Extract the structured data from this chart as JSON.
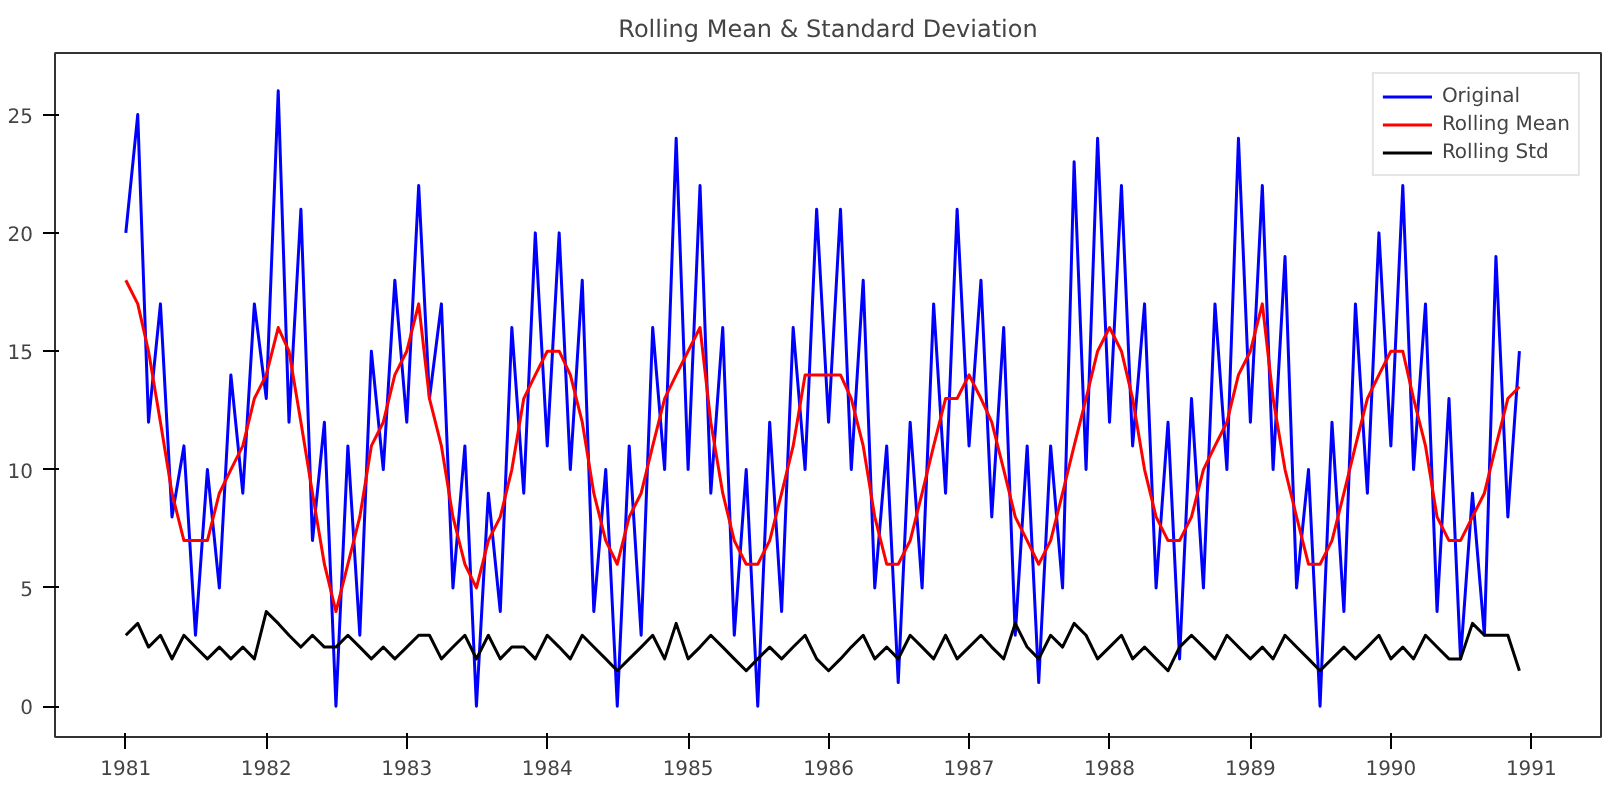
{
  "chart_data": {
    "type": "line",
    "title": "Rolling Mean & Standard Deviation",
    "x": [
      "1981-01",
      "1981-02",
      "1981-03",
      "1981-04",
      "1981-05",
      "1981-06",
      "1981-07",
      "1981-08",
      "1981-09",
      "1981-10",
      "1981-11",
      "1981-12",
      "1982-01",
      "1982-02",
      "1982-03",
      "1982-04",
      "1982-05",
      "1982-06",
      "1982-07",
      "1982-08",
      "1982-09",
      "1982-10",
      "1982-11",
      "1982-12",
      "1983-01",
      "1983-02",
      "1983-03",
      "1983-04",
      "1983-05",
      "1983-06",
      "1983-07",
      "1983-08",
      "1983-09",
      "1983-10",
      "1983-11",
      "1983-12",
      "1984-01",
      "1984-02",
      "1984-03",
      "1984-04",
      "1984-05",
      "1984-06",
      "1984-07",
      "1984-08",
      "1984-09",
      "1984-10",
      "1984-11",
      "1984-12",
      "1985-01",
      "1985-02",
      "1985-03",
      "1985-04",
      "1985-05",
      "1985-06",
      "1985-07",
      "1985-08",
      "1985-09",
      "1985-10",
      "1985-11",
      "1985-12",
      "1986-01",
      "1986-02",
      "1986-03",
      "1986-04",
      "1986-05",
      "1986-06",
      "1986-07",
      "1986-08",
      "1986-09",
      "1986-10",
      "1986-11",
      "1986-12",
      "1987-01",
      "1987-02",
      "1987-03",
      "1987-04",
      "1987-05",
      "1987-06",
      "1987-07",
      "1987-08",
      "1987-09",
      "1987-10",
      "1987-11",
      "1987-12",
      "1988-01",
      "1988-02",
      "1988-03",
      "1988-04",
      "1988-05",
      "1988-06",
      "1988-07",
      "1988-08",
      "1988-09",
      "1988-10",
      "1988-11",
      "1988-12",
      "1989-01",
      "1989-02",
      "1989-03",
      "1989-04",
      "1989-05",
      "1989-06",
      "1989-07",
      "1989-08",
      "1989-09",
      "1989-10",
      "1989-11",
      "1989-12",
      "1990-01",
      "1990-02",
      "1990-03",
      "1990-04",
      "1990-05",
      "1990-06",
      "1990-07",
      "1990-08",
      "1990-09",
      "1990-10",
      "1990-11",
      "1990-12"
    ],
    "series": [
      {
        "name": "Original",
        "color": "#0000ff",
        "values": [
          20,
          25,
          12,
          17,
          8,
          11,
          3,
          10,
          5,
          14,
          9,
          17,
          13,
          26,
          12,
          21,
          7,
          12,
          0,
          11,
          3,
          15,
          10,
          18,
          12,
          22,
          13,
          17,
          5,
          11,
          0,
          9,
          4,
          16,
          9,
          20,
          11,
          20,
          10,
          18,
          4,
          10,
          0,
          11,
          3,
          16,
          10,
          24,
          10,
          22,
          9,
          16,
          3,
          10,
          0,
          12,
          4,
          16,
          10,
          21,
          12,
          21,
          10,
          18,
          5,
          11,
          1,
          12,
          5,
          17,
          9,
          21,
          11,
          18,
          8,
          16,
          3,
          11,
          1,
          11,
          5,
          23,
          10,
          24,
          12,
          22,
          11,
          17,
          5,
          12,
          2,
          13,
          5,
          17,
          10,
          24,
          12,
          22,
          10,
          19,
          5,
          10,
          0,
          12,
          4,
          17,
          9,
          20,
          11,
          22,
          10,
          17,
          4,
          13,
          2,
          9,
          3,
          19,
          8,
          15
        ]
      },
      {
        "name": "Rolling Mean",
        "color": "#ff0000",
        "values": [
          18,
          17,
          15,
          12,
          9,
          7,
          7,
          7,
          9,
          10,
          11,
          13,
          14,
          16,
          15,
          12,
          9,
          6,
          4,
          6,
          8,
          11,
          12,
          14,
          15,
          17,
          13,
          11,
          8,
          6,
          5,
          7,
          8,
          10,
          13,
          14,
          15,
          15,
          14,
          12,
          9,
          7,
          6,
          8,
          9,
          11,
          13,
          14,
          15,
          16,
          12,
          9,
          7,
          6,
          6,
          7,
          9,
          11,
          14,
          14,
          14,
          14,
          13,
          11,
          8,
          6,
          6,
          7,
          9,
          11,
          13,
          13,
          14,
          13,
          12,
          10,
          8,
          7,
          6,
          7,
          9,
          11,
          13,
          15,
          16,
          15,
          13,
          10,
          8,
          7,
          7,
          8,
          10,
          11,
          12,
          14,
          15,
          17,
          13,
          10,
          8,
          6,
          6,
          7,
          9,
          11,
          13,
          14,
          15,
          15,
          13,
          11,
          8,
          7,
          7,
          8,
          9,
          11,
          13,
          13.5
        ]
      },
      {
        "name": "Rolling Std",
        "color": "#000000",
        "values": [
          3,
          3.5,
          2.5,
          3,
          2,
          3,
          2.5,
          2,
          2.5,
          2,
          2.5,
          2,
          4,
          3.5,
          3,
          2.5,
          3,
          2.5,
          2.5,
          3,
          2.5,
          2,
          2.5,
          2,
          2.5,
          3,
          3,
          2,
          2.5,
          3,
          2,
          3,
          2,
          2.5,
          2.5,
          2,
          3,
          2.5,
          2,
          3,
          2.5,
          2,
          1.5,
          2,
          2.5,
          3,
          2,
          3.5,
          2,
          2.5,
          3,
          2.5,
          2,
          1.5,
          2,
          2.5,
          2,
          2.5,
          3,
          2,
          1.5,
          2,
          2.5,
          3,
          2,
          2.5,
          2,
          3,
          2.5,
          2,
          3,
          2,
          2.5,
          3,
          2.5,
          2,
          3.5,
          2.5,
          2,
          3,
          2.5,
          3.5,
          3,
          2,
          2.5,
          3,
          2,
          2.5,
          2,
          1.5,
          2.5,
          3,
          2.5,
          2,
          3,
          2.5,
          2,
          2.5,
          2,
          3,
          2.5,
          2,
          1.5,
          2,
          2.5,
          2,
          2.5,
          3,
          2,
          2.5,
          2,
          3,
          2.5,
          2,
          2,
          3.5,
          3,
          3,
          3,
          1.5
        ]
      }
    ],
    "xlim": [
      "1980-07-01",
      "1991-07-01"
    ],
    "xticks": [
      "1981",
      "1982",
      "1983",
      "1984",
      "1985",
      "1986",
      "1987",
      "1988",
      "1989",
      "1990",
      "1991"
    ],
    "ylim": [
      -1.3,
      27.6
    ],
    "yticks": [
      0,
      5,
      10,
      15,
      20,
      25
    ],
    "legend": "top right"
  }
}
